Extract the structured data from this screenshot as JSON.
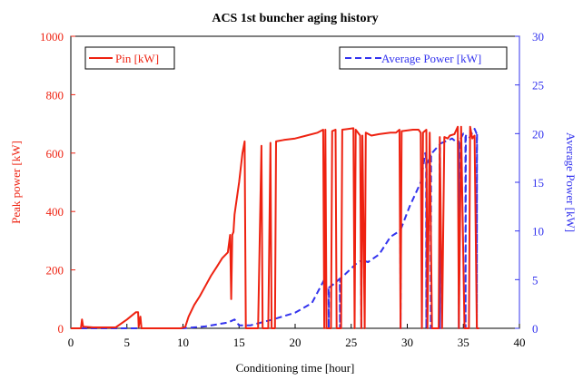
{
  "chart_data": {
    "type": "line",
    "title": "ACS 1st buncher aging history",
    "xlabel": "Conditioning time [hour]",
    "ylabel_left": "Peak power [kW]",
    "ylabel_right": "Average Power [kW]",
    "xlim": [
      0,
      40
    ],
    "ylim_left": [
      0,
      1000
    ],
    "ylim_right": [
      0,
      30
    ],
    "x_ticks": [
      "0",
      "5",
      "10",
      "15",
      "20",
      "25",
      "30",
      "35",
      "40"
    ],
    "y_left_ticks": [
      "0",
      "200",
      "400",
      "600",
      "800",
      "1000"
    ],
    "y_right_ticks": [
      "0",
      "5",
      "10",
      "15",
      "20",
      "25",
      "30"
    ],
    "grid": false,
    "series": [
      {
        "name": "Pin [kW]",
        "axis": "left",
        "color": "#ee2211",
        "style": "solid",
        "legend_position": "top-left",
        "points": [
          [
            0,
            0
          ],
          [
            0.9,
            0
          ],
          [
            1.0,
            30
          ],
          [
            1.1,
            5
          ],
          [
            1.3,
            5
          ],
          [
            2.0,
            3
          ],
          [
            4.0,
            3
          ],
          [
            5.0,
            30
          ],
          [
            5.8,
            55
          ],
          [
            6.0,
            55
          ],
          [
            6.05,
            5
          ],
          [
            6.2,
            40
          ],
          [
            6.3,
            0
          ],
          [
            9.8,
            0
          ],
          [
            10.2,
            5
          ],
          [
            10.5,
            40
          ],
          [
            11.0,
            80
          ],
          [
            11.5,
            110
          ],
          [
            12.0,
            145
          ],
          [
            12.5,
            180
          ],
          [
            13.0,
            210
          ],
          [
            13.5,
            240
          ],
          [
            14.0,
            260
          ],
          [
            14.2,
            320
          ],
          [
            14.3,
            100
          ],
          [
            14.4,
            320
          ],
          [
            14.5,
            330
          ],
          [
            14.6,
            390
          ],
          [
            15.0,
            500
          ],
          [
            15.3,
            600
          ],
          [
            15.5,
            640
          ],
          [
            15.6,
            0
          ],
          [
            16.7,
            0
          ],
          [
            17.0,
            625
          ],
          [
            17.1,
            0
          ],
          [
            17.6,
            0
          ],
          [
            17.8,
            635
          ],
          [
            17.9,
            0
          ],
          [
            18.2,
            0
          ],
          [
            18.3,
            640
          ],
          [
            19.0,
            645
          ],
          [
            20.0,
            650
          ],
          [
            21.0,
            660
          ],
          [
            22.0,
            670
          ],
          [
            22.5,
            680
          ],
          [
            22.6,
            0
          ],
          [
            22.7,
            680
          ],
          [
            22.8,
            0
          ],
          [
            23.2,
            0
          ],
          [
            23.3,
            675
          ],
          [
            23.6,
            680
          ],
          [
            23.7,
            0
          ],
          [
            24.1,
            0
          ],
          [
            24.2,
            680
          ],
          [
            25.2,
            685
          ],
          [
            25.3,
            0
          ],
          [
            25.4,
            680
          ],
          [
            25.8,
            660
          ],
          [
            25.9,
            0
          ],
          [
            26.0,
            660
          ],
          [
            26.2,
            0
          ],
          [
            26.3,
            670
          ],
          [
            26.8,
            660
          ],
          [
            27.5,
            665
          ],
          [
            28.5,
            670
          ],
          [
            29.0,
            670
          ],
          [
            29.3,
            680
          ],
          [
            29.4,
            0
          ],
          [
            29.5,
            675
          ],
          [
            30.5,
            680
          ],
          [
            31.0,
            680
          ],
          [
            31.2,
            670
          ],
          [
            31.3,
            0
          ],
          [
            31.4,
            670
          ],
          [
            31.7,
            680
          ],
          [
            31.8,
            0
          ],
          [
            32.0,
            670
          ],
          [
            32.2,
            0
          ],
          [
            32.8,
            0
          ],
          [
            32.9,
            655
          ],
          [
            33.1,
            0
          ],
          [
            33.3,
            655
          ],
          [
            33.6,
            650
          ],
          [
            33.8,
            660
          ],
          [
            34.2,
            665
          ],
          [
            34.5,
            690
          ],
          [
            34.6,
            0
          ],
          [
            34.8,
            690
          ],
          [
            35.1,
            0
          ],
          [
            35.5,
            0
          ],
          [
            35.6,
            690
          ],
          [
            35.8,
            650
          ],
          [
            36.0,
            660
          ],
          [
            36.2,
            0
          ],
          [
            36.4,
            0
          ]
        ]
      },
      {
        "name": "Average Power [kW]",
        "axis": "right",
        "color": "#3333ee",
        "style": "dashed",
        "legend_position": "top-right",
        "points": [
          [
            0,
            0
          ],
          [
            10,
            0
          ],
          [
            12,
            0.2
          ],
          [
            14,
            0.6
          ],
          [
            14.6,
            0.9
          ],
          [
            15,
            0.3
          ],
          [
            16,
            0.3
          ],
          [
            18,
            0.9
          ],
          [
            20,
            1.6
          ],
          [
            21.5,
            2.6
          ],
          [
            22.6,
            5.0
          ],
          [
            22.8,
            4.0
          ],
          [
            23.5,
            4.6
          ],
          [
            24.5,
            5.6
          ],
          [
            25.5,
            6.7
          ],
          [
            26.0,
            7.0
          ],
          [
            26.5,
            6.8
          ],
          [
            27.5,
            7.6
          ],
          [
            28.5,
            9.4
          ],
          [
            29.3,
            10.0
          ],
          [
            29.5,
            10.4
          ],
          [
            30.2,
            12.5
          ],
          [
            30.8,
            14.0
          ],
          [
            31.2,
            15.0
          ],
          [
            31.4,
            16.5
          ],
          [
            31.6,
            18.0
          ],
          [
            31.8,
            17.0
          ],
          [
            32.0,
            17.5
          ],
          [
            32.2,
            18.0
          ],
          [
            33.0,
            19.0
          ],
          [
            34.0,
            19.5
          ],
          [
            34.5,
            19.0
          ],
          [
            35.0,
            20.0
          ],
          [
            35.5,
            19.5
          ],
          [
            36.0,
            20.5
          ],
          [
            36.2,
            20.0
          ]
        ],
        "drop_x": [
          23.0,
          24.0,
          25.9,
          29.4,
          31.7,
          32.1,
          32.9,
          34.6,
          35.2,
          36.2
        ]
      }
    ]
  }
}
